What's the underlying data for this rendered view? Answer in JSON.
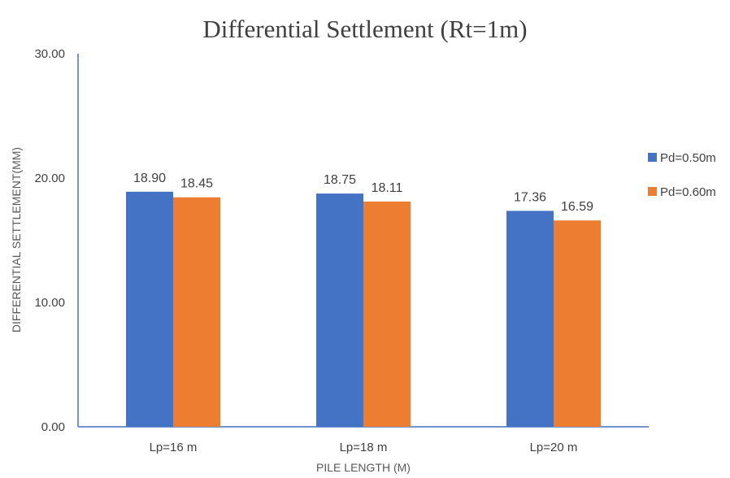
{
  "chart_data": {
    "type": "bar",
    "title": "Differential Settlement (Rt=1m)",
    "xlabel": "PILE LENGTH (M)",
    "ylabel": "DIFFERENTIAL SETTLEMENT(MM)",
    "categories": [
      "Lp=16 m",
      "Lp=18 m",
      "Lp=20 m"
    ],
    "series": [
      {
        "name": "Pd=0.50m",
        "color": "#4472C4",
        "values": [
          18.9,
          18.75,
          17.36
        ]
      },
      {
        "name": "Pd=0.60m",
        "color": "#ED7D31",
        "values": [
          18.45,
          18.11,
          16.59
        ]
      }
    ],
    "ylim": [
      0,
      30
    ],
    "yticks": [
      "0.00",
      "10.00",
      "20.00",
      "30.00"
    ],
    "ytick_values": [
      0,
      10,
      20,
      30
    ],
    "legend_position": "right",
    "grid": false,
    "axis_color": "#4472C4"
  }
}
